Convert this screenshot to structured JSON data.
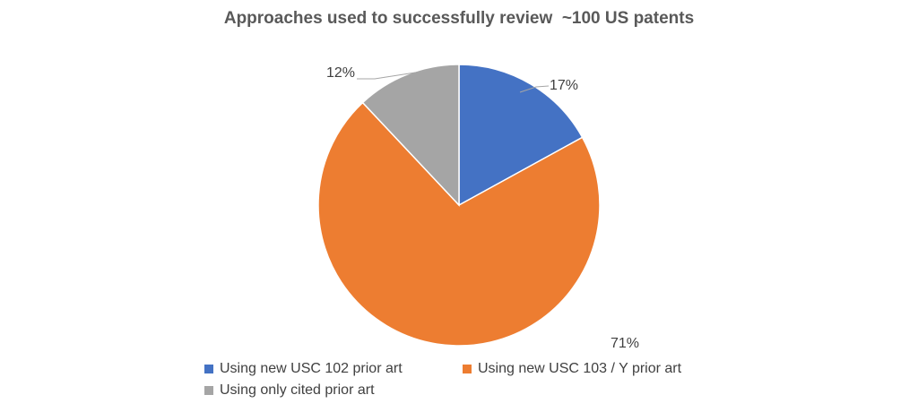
{
  "chart_data": {
    "type": "pie",
    "title": "Approaches used to successfully review  ~100 US patents",
    "categories": [
      "Using new USC 102 prior art",
      "Using new USC 103 / Y prior art",
      "Using only cited prior art"
    ],
    "values": [
      17,
      71,
      12
    ],
    "data_labels": [
      "17%",
      "71%",
      "12%"
    ],
    "colors": [
      "#4472C4",
      "#ED7D31",
      "#A5A5A5"
    ],
    "legend_position": "bottom"
  }
}
